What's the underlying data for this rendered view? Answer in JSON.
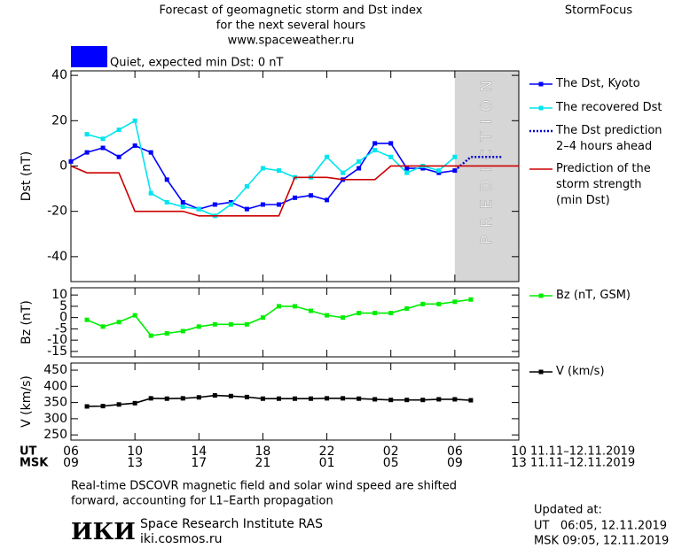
{
  "header": {
    "title_lines": [
      "Forecast of geomagnetic storm and Dst index",
      "for the next several hours",
      "www.spaceweather.ru"
    ],
    "brand": "StormFocus",
    "status": "Quiet, expected min Dst: 0 nT",
    "status_color": "#0000ff"
  },
  "chart_data": [
    {
      "type": "line",
      "ylabel": "Dst (nT)",
      "xlim": [
        0,
        28
      ],
      "ylim": [
        -51,
        42
      ],
      "yticks": [
        -40,
        -20,
        0,
        20,
        40
      ],
      "prediction_region": [
        24,
        28
      ],
      "prediction_label": "PREDICTION",
      "x": [
        0,
        1,
        2,
        3,
        4,
        5,
        6,
        7,
        8,
        9,
        10,
        11,
        12,
        13,
        14,
        15,
        16,
        17,
        18,
        19,
        20,
        21,
        22,
        23,
        24,
        25,
        26,
        27,
        28
      ],
      "series": [
        {
          "name": "The Dst, Kyoto",
          "color": "#0000ff",
          "marker": true,
          "values": [
            2,
            6,
            8,
            4,
            9,
            6,
            -6,
            -16,
            -19,
            -17,
            -16,
            -19,
            -17,
            -17,
            -14,
            -13,
            -15,
            -6,
            -1,
            10,
            10,
            -1,
            -1,
            -3,
            -2,
            null,
            null,
            null,
            null
          ]
        },
        {
          "name": "The recovered Dst",
          "color": "#00e5ee",
          "marker": true,
          "values": [
            null,
            14,
            12,
            16,
            20,
            -12,
            -16,
            -18,
            -19,
            -22,
            -17,
            -9,
            -1,
            -2,
            -5,
            -5,
            4,
            -3,
            2,
            7,
            4,
            -3,
            0,
            -2,
            4,
            null,
            null,
            null,
            null
          ]
        },
        {
          "name": "The Dst prediction\n2–4 hours ahead",
          "color": "#0000cc",
          "dotted": true,
          "values": [
            null,
            null,
            null,
            null,
            null,
            null,
            null,
            null,
            null,
            null,
            null,
            null,
            null,
            null,
            null,
            null,
            null,
            null,
            null,
            null,
            null,
            null,
            null,
            null,
            -2,
            4,
            4,
            4,
            null
          ]
        },
        {
          "name": "Prediction of the\nstorm strength\n(min Dst)",
          "color": "#cc0000",
          "values": [
            0,
            -3,
            -3,
            -3,
            -20,
            -20,
            -20,
            -20,
            -22,
            -22,
            -22,
            -22,
            -22,
            -22,
            -5,
            -5,
            -5,
            -6,
            -6,
            -6,
            0,
            0,
            0,
            0,
            0,
            0,
            0,
            0,
            0
          ]
        }
      ]
    },
    {
      "type": "line",
      "ylabel": "Bz (nT)",
      "xlim": [
        0,
        28
      ],
      "ylim": [
        -17.4,
        13.2
      ],
      "yticks": [
        -15,
        -10,
        -5,
        0,
        5,
        10
      ],
      "x": [
        0,
        1,
        2,
        3,
        4,
        5,
        6,
        7,
        8,
        9,
        10,
        11,
        12,
        13,
        14,
        15,
        16,
        17,
        18,
        19,
        20,
        21,
        22,
        23,
        24,
        25,
        26,
        27,
        28
      ],
      "series": [
        {
          "name": "Bz (nT, GSM)",
          "color": "#00ee00",
          "marker": true,
          "values": [
            null,
            -1,
            -4,
            -2,
            1,
            -8,
            -7,
            -6,
            -4,
            -3,
            -3,
            -3,
            0,
            5,
            5,
            3,
            1,
            0,
            2,
            2,
            2,
            4,
            6,
            6,
            7,
            8,
            null,
            null,
            null
          ]
        }
      ]
    },
    {
      "type": "line",
      "ylabel": "V (km/s)",
      "xlim": [
        0,
        28
      ],
      "ylim": [
        234,
        472
      ],
      "yticks": [
        250,
        300,
        350,
        400,
        450
      ],
      "x": [
        0,
        1,
        2,
        3,
        4,
        5,
        6,
        7,
        8,
        9,
        10,
        11,
        12,
        13,
        14,
        15,
        16,
        17,
        18,
        19,
        20,
        21,
        22,
        23,
        24,
        25,
        26,
        27,
        28
      ],
      "xlabel": "UT",
      "xlabel2": "MSK",
      "xticks": [
        {
          "value": 0,
          "label": "06"
        },
        {
          "value": 4,
          "label": "10"
        },
        {
          "value": 8,
          "label": "14"
        },
        {
          "value": 12,
          "label": "18"
        },
        {
          "value": 16,
          "label": "22"
        },
        {
          "value": 20,
          "label": "02"
        },
        {
          "value": 24,
          "label": "06"
        },
        {
          "value": 28,
          "label": "10"
        }
      ],
      "xticks2": [
        {
          "value": 0,
          "label": "09"
        },
        {
          "value": 4,
          "label": "13"
        },
        {
          "value": 8,
          "label": "17"
        },
        {
          "value": 12,
          "label": "21"
        },
        {
          "value": 16,
          "label": "01"
        },
        {
          "value": 20,
          "label": "05"
        },
        {
          "value": 24,
          "label": "09"
        },
        {
          "value": 28,
          "label": "13"
        }
      ],
      "date_ut": "11.11–12.11.2019",
      "date_msk": "11.11–12.11.2019",
      "series": [
        {
          "name": "V (km/s)",
          "color": "#000000",
          "marker": true,
          "values": [
            null,
            338,
            339,
            344,
            348,
            363,
            362,
            363,
            366,
            372,
            370,
            367,
            362,
            362,
            362,
            362,
            363,
            363,
            362,
            360,
            358,
            358,
            358,
            360,
            360,
            357,
            null,
            null,
            null
          ]
        }
      ]
    }
  ],
  "footer": {
    "note_lines": [
      "Real-time DSCOVR magnetic field and solar wind speed are shifted",
      "forward, accounting for L1–Earth propagation"
    ],
    "logo": "ИКИ",
    "institute": "Space Research Institute RAS",
    "site": "iki.cosmos.ru",
    "updated_lines": [
      "Updated at:",
      "UT   06:05, 12.11.2019",
      "MSK 09:05, 12.11.2019"
    ]
  }
}
